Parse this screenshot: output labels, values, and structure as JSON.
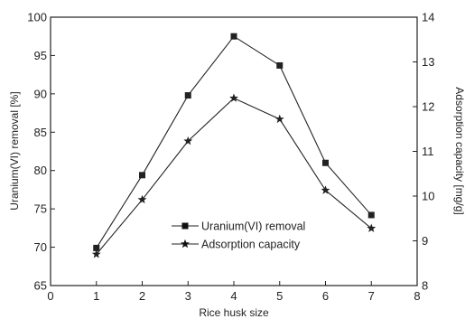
{
  "chart_data": {
    "type": "line",
    "title": "",
    "xlabel": "Rice husk size",
    "ylabel_left": "Uranium(VI)  removal [%]",
    "ylabel_right": "Adsorption capacity [mg/g]",
    "xlim": [
      0,
      8
    ],
    "ylim_left": [
      65,
      100
    ],
    "ylim_right": [
      8,
      14
    ],
    "x_ticks": [
      "0",
      "1",
      "2",
      "3",
      "4",
      "5",
      "6",
      "7",
      "8"
    ],
    "y_left_ticks": [
      "65",
      "70",
      "75",
      "80",
      "85",
      "90",
      "95",
      "100"
    ],
    "y_right_ticks": [
      "8",
      "9",
      "10",
      "11",
      "12",
      "13",
      "14"
    ],
    "grid": false,
    "legend_position": "lower-center",
    "x": [
      1,
      2,
      3,
      4,
      5,
      6,
      7
    ],
    "series": [
      {
        "name": "Uranium(VI)  removal",
        "axis": "left",
        "marker": "square",
        "values": [
          69.9,
          79.4,
          89.8,
          97.5,
          93.7,
          81.0,
          74.2
        ]
      },
      {
        "name": "Adsorption capacity",
        "axis": "right",
        "marker": "star",
        "values": [
          8.7,
          9.92,
          11.23,
          12.19,
          11.72,
          10.13,
          9.28
        ]
      }
    ],
    "colors": {
      "series": "#222222"
    }
  }
}
